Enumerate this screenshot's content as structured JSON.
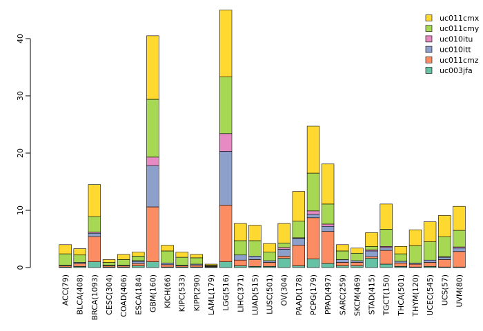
{
  "chart_data": {
    "type": "bar",
    "stacked": true,
    "title": "",
    "xlabel": "",
    "ylabel": "",
    "ylim": [
      0,
      45.5
    ],
    "yticks": [
      0,
      10,
      20,
      30,
      40
    ],
    "legend_position": "top-right",
    "categories": [
      "ACC(79)",
      "BLCA(408)",
      "BRCA(1093)",
      "CESC(304)",
      "COAD(406)",
      "ESCA(184)",
      "GBM(160)",
      "KICH(66)",
      "KIPC(533)",
      "KIPP(290)",
      "LAML(179)",
      "LGG(516)",
      "LIHC(371)",
      "LUAD(515)",
      "LUSC(501)",
      "OV(304)",
      "PAAD(178)",
      "PCPG(179)",
      "PPAD(497)",
      "SARC(259)",
      "SKCM(469)",
      "STAD(415)",
      "TGCT(150)",
      "THCA(501)",
      "THYM(120)",
      "UCEC(545)",
      "UCS(57)",
      "UVM(80)"
    ],
    "series": [
      {
        "name": "uc003jfa",
        "color": "#66c2a5",
        "values": [
          0.1,
          0.2,
          1.0,
          0.1,
          0.1,
          0.3,
          1.0,
          0.1,
          0.1,
          0.1,
          0.1,
          1.0,
          0.3,
          0.2,
          0.2,
          1.6,
          0.3,
          1.5,
          0.7,
          0.3,
          0.3,
          1.6,
          0.6,
          0.2,
          0.1,
          0.2,
          0.1,
          0.1
        ]
      },
      {
        "name": "uc011cmz",
        "color": "#fc8d62",
        "values": [
          0.2,
          0.5,
          4.4,
          0.2,
          0.2,
          0.4,
          9.6,
          0.4,
          0.2,
          0.3,
          0.1,
          9.9,
          1.0,
          1.2,
          0.7,
          0.4,
          3.6,
          7.2,
          5.6,
          0.6,
          0.6,
          0.3,
          2.4,
          0.6,
          0.5,
          0.7,
          1.3,
          2.7
        ]
      },
      {
        "name": "uc010itt",
        "color": "#8da0cb",
        "values": [
          0.1,
          0.2,
          0.6,
          0.1,
          0.1,
          0.4,
          7.2,
          0.3,
          0.1,
          0.2,
          0.1,
          9.4,
          0.9,
          0.6,
          0.3,
          1.2,
          1.2,
          0.6,
          0.9,
          0.5,
          0.3,
          1.0,
          0.5,
          0.3,
          0.2,
          0.4,
          0.4,
          0.6
        ]
      },
      {
        "name": "uc010itu",
        "color": "#e78ac3",
        "values": [
          0.0,
          0.0,
          0.2,
          0.0,
          0.0,
          0.1,
          1.5,
          0.0,
          0.0,
          0.0,
          0.0,
          3.1,
          0.0,
          0.0,
          0.0,
          0.3,
          0.1,
          0.6,
          0.4,
          0.0,
          0.0,
          0.2,
          0.2,
          0.0,
          0.0,
          0.0,
          0.1,
          0.2
        ]
      },
      {
        "name": "uc011cmy",
        "color": "#a6d854",
        "values": [
          2.0,
          1.3,
          2.7,
          0.5,
          1.0,
          0.8,
          10.1,
          2.1,
          1.4,
          1.1,
          0.1,
          9.9,
          2.5,
          2.7,
          1.5,
          0.8,
          2.9,
          6.6,
          3.5,
          1.5,
          1.3,
          0.6,
          3.0,
          1.3,
          3.0,
          3.2,
          3.5,
          2.9
        ]
      },
      {
        "name": "uc011cmx",
        "color": "#ffd92f",
        "values": [
          1.6,
          1.1,
          5.6,
          0.5,
          0.9,
          0.7,
          11.1,
          1.0,
          0.9,
          0.6,
          0.2,
          11.7,
          3.0,
          2.7,
          1.5,
          3.4,
          5.2,
          8.2,
          7.0,
          1.1,
          0.9,
          2.4,
          4.4,
          1.3,
          2.8,
          3.5,
          3.7,
          4.2
        ]
      }
    ]
  }
}
